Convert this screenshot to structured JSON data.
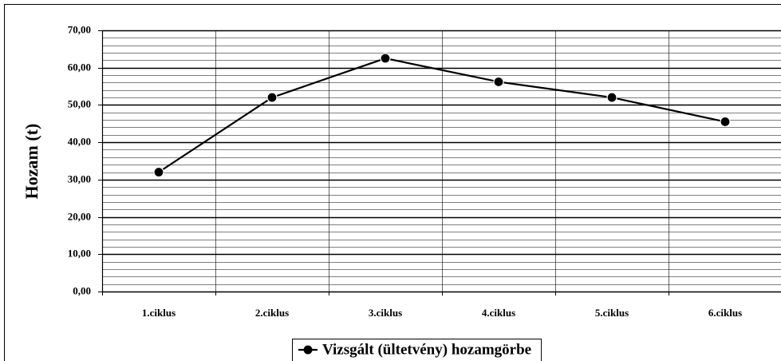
{
  "chart_data": {
    "type": "line",
    "ylabel": "Hozam (t)",
    "categories": [
      "1.ciklus",
      "2.ciklus",
      "3.ciklus",
      "4.ciklus",
      "5.ciklus",
      "6.ciklus"
    ],
    "series": [
      {
        "name": "Vizsgált (ültetvény) hozamgörbe",
        "color": "#000000",
        "values": [
          32.0,
          52.0,
          62.5,
          56.2,
          52.0,
          45.5
        ]
      }
    ],
    "ylim": [
      0,
      70
    ],
    "yticks": [
      {
        "value": 0,
        "label": "0,00"
      },
      {
        "value": 10,
        "label": "10,00"
      },
      {
        "value": 20,
        "label": "20,00"
      },
      {
        "value": 30,
        "label": "30,00"
      },
      {
        "value": 40,
        "label": "40,00"
      },
      {
        "value": 50,
        "label": "50,00"
      },
      {
        "value": 60,
        "label": "60,00"
      },
      {
        "value": 70,
        "label": "70,00"
      }
    ],
    "grid": true,
    "minor_grid": 2,
    "legend": "bottom"
  }
}
